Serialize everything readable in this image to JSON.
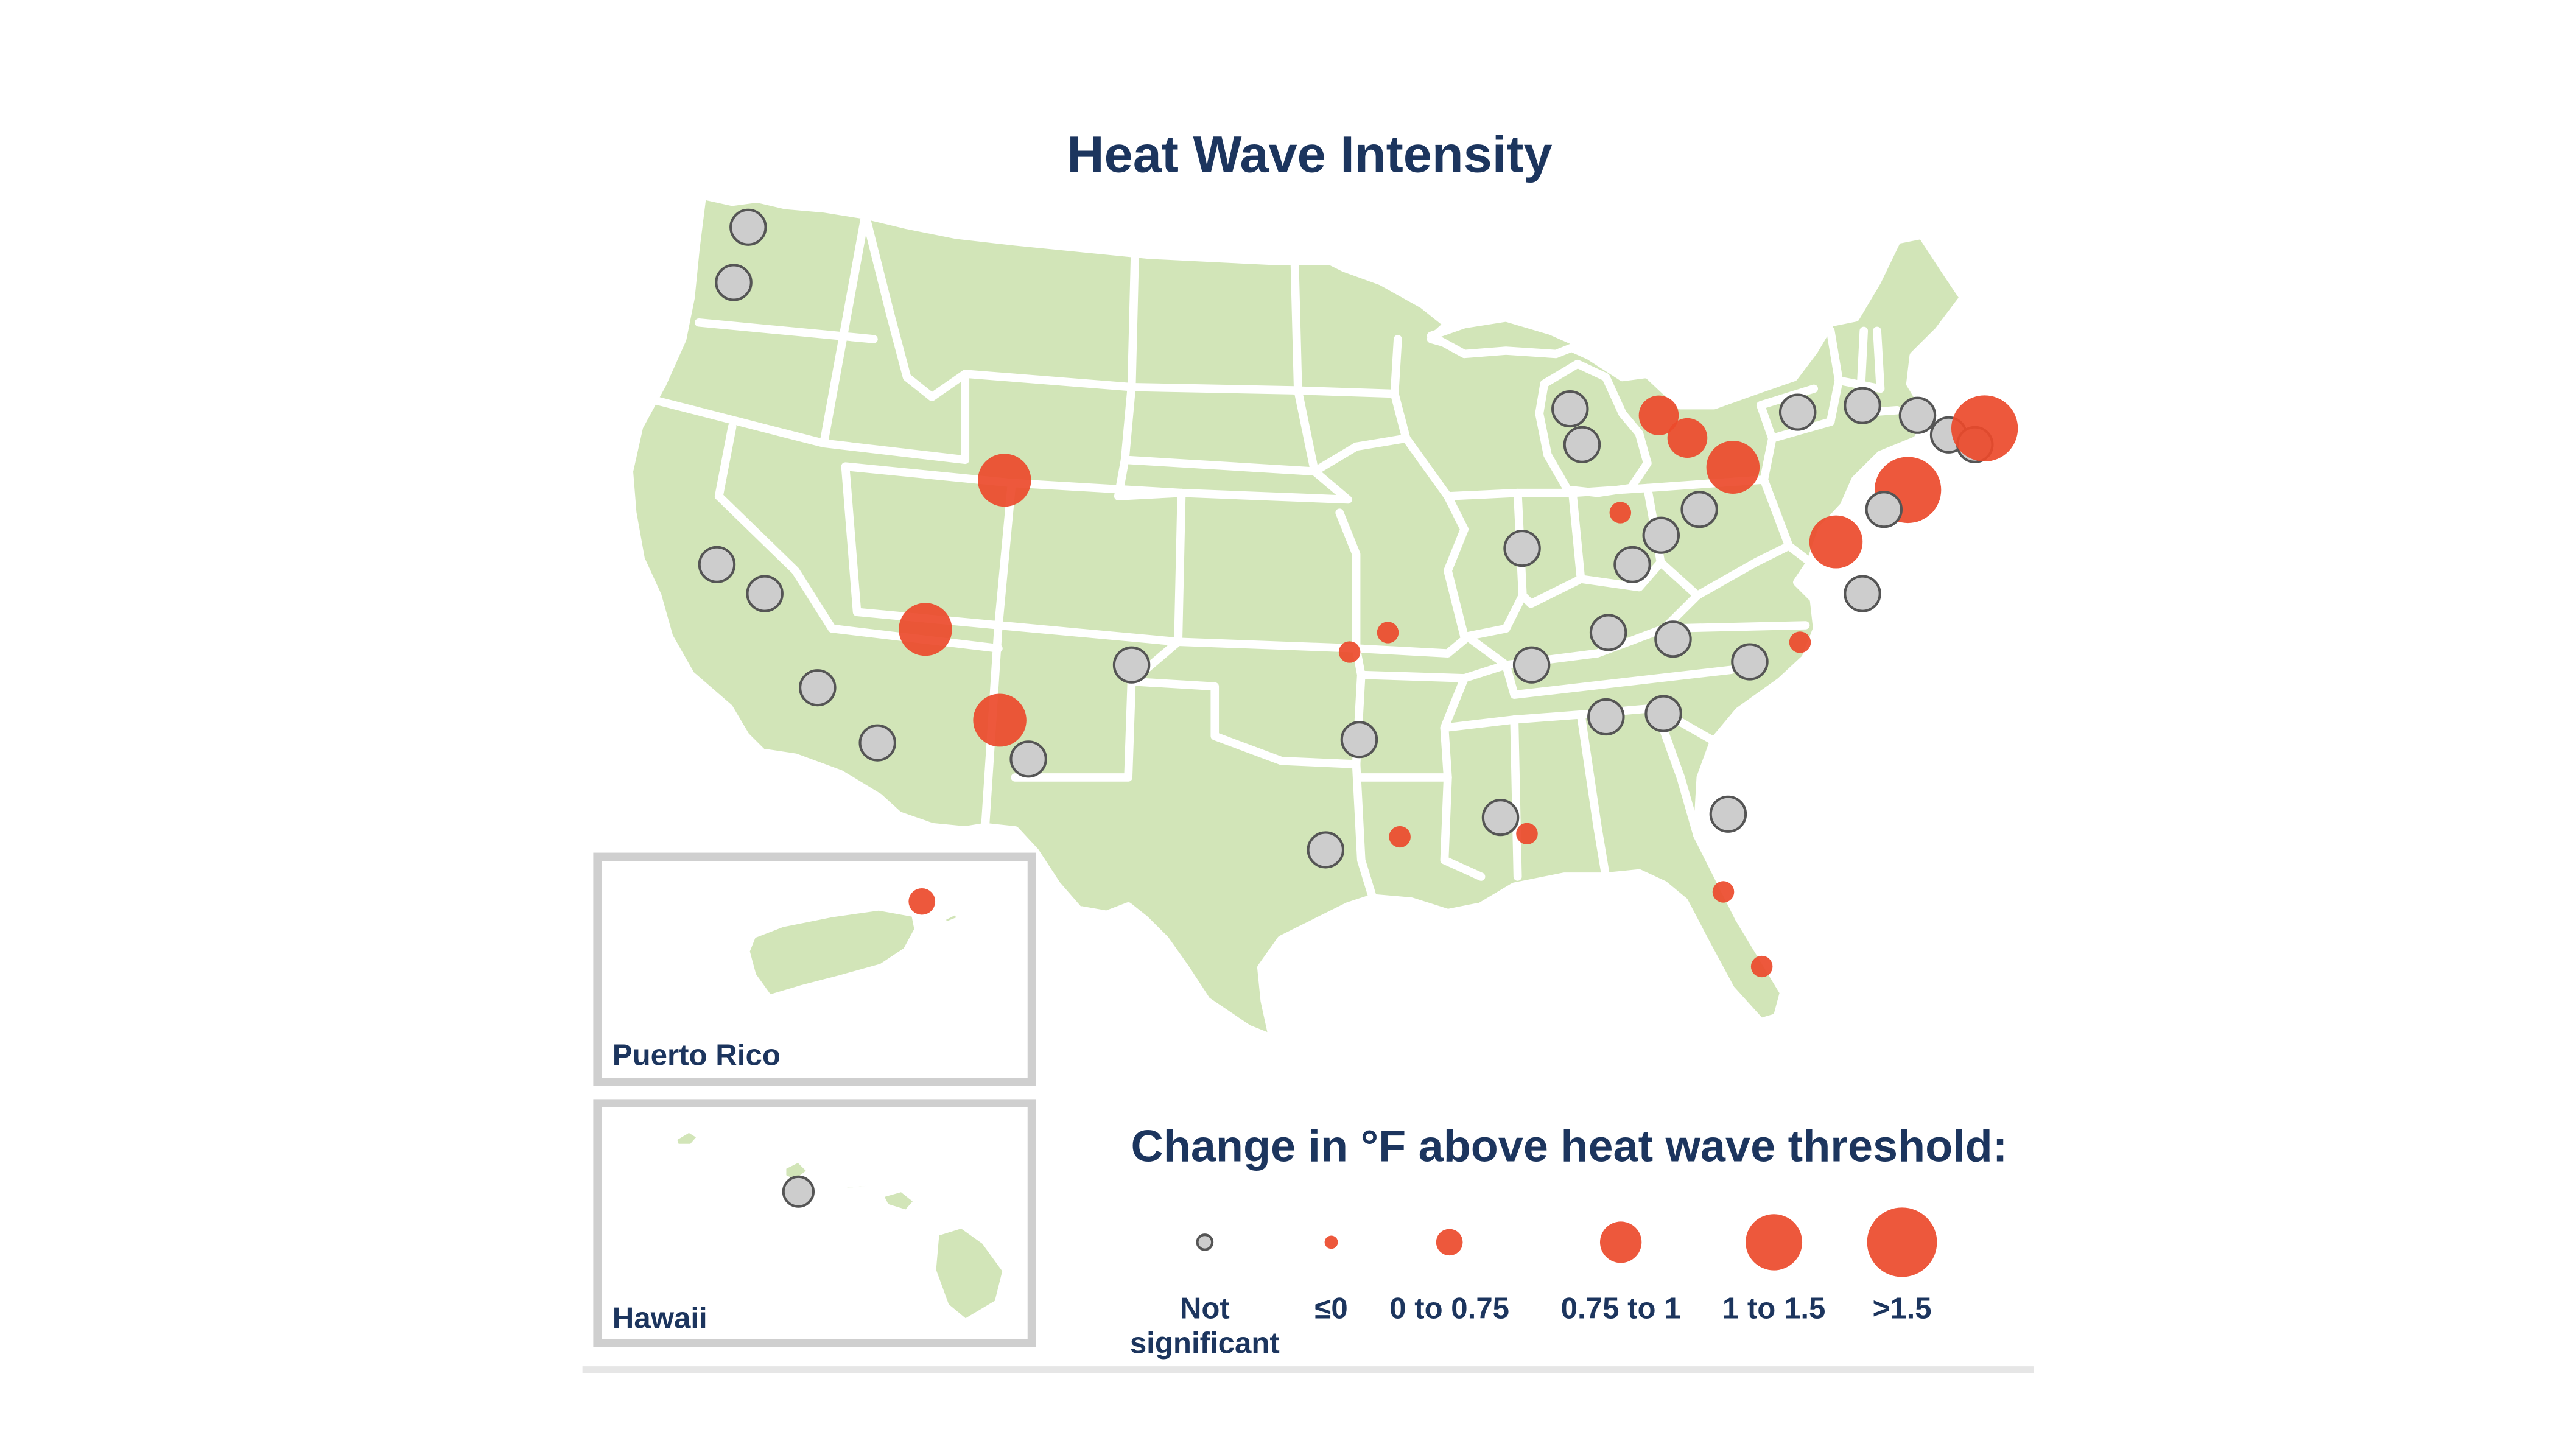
{
  "title": "Heat Wave Intensity",
  "colors": {
    "land": "#d2e5b8",
    "significant_fill": "#ec4a2b",
    "not_significant_fill": "#cdcdcd",
    "not_significant_stroke": "#555555",
    "text": "#1c355e"
  },
  "insets": {
    "puerto_rico": "Puerto Rico",
    "hawaii": "Hawaii"
  },
  "legend": {
    "title": "Change in °F above heat wave threshold:",
    "categories": [
      {
        "key": "ns",
        "label_lines": [
          "Not",
          "significant"
        ]
      },
      {
        "key": "le0",
        "label_lines": [
          "≤0"
        ]
      },
      {
        "key": "c1",
        "label_lines": [
          "0 to 0.75"
        ]
      },
      {
        "key": "c2",
        "label_lines": [
          "0.75 to 1"
        ]
      },
      {
        "key": "c3",
        "label_lines": [
          "1 to 1.5"
        ]
      },
      {
        "key": "c4",
        "label_lines": [
          ">1.5"
        ]
      }
    ]
  },
  "map_data": {
    "stations": [
      {
        "lat": 48.6,
        "lon": -122.6,
        "cat": "ns"
      },
      {
        "lat": 46.9,
        "lon": -123.2,
        "cat": "ns"
      },
      {
        "lat": 40.8,
        "lon": -111.9,
        "cat": "c3"
      },
      {
        "lat": 38.2,
        "lon": -123.9,
        "cat": "ns"
      },
      {
        "lat": 37.3,
        "lon": -121.9,
        "cat": "ns"
      },
      {
        "lat": 36.2,
        "lon": -115.2,
        "cat": "c3"
      },
      {
        "lat": 34.4,
        "lon": -119.7,
        "cat": "ns"
      },
      {
        "lat": 32.7,
        "lon": -117.2,
        "cat": "ns"
      },
      {
        "lat": 33.4,
        "lon": -112.1,
        "cat": "c3"
      },
      {
        "lat": 32.2,
        "lon": -110.9,
        "cat": "ns"
      },
      {
        "lat": 35.1,
        "lon": -106.6,
        "cat": "ns"
      },
      {
        "lat": 35.5,
        "lon": -97.5,
        "cat": "le0"
      },
      {
        "lat": 36.1,
        "lon": -95.9,
        "cat": "le0"
      },
      {
        "lat": 32.8,
        "lon": -97.1,
        "cat": "ns"
      },
      {
        "lat": 29.8,
        "lon": -95.4,
        "cat": "le0"
      },
      {
        "lat": 29.4,
        "lon": -98.5,
        "cat": "ns"
      },
      {
        "lat": 43.0,
        "lon": -88.3,
        "cat": "ns"
      },
      {
        "lat": 41.9,
        "lon": -87.8,
        "cat": "ns"
      },
      {
        "lat": 38.7,
        "lon": -90.3,
        "cat": "ns"
      },
      {
        "lat": 35.1,
        "lon": -89.9,
        "cat": "ns"
      },
      {
        "lat": 30.4,
        "lon": -91.2,
        "cat": "ns"
      },
      {
        "lat": 29.9,
        "lon": -90.1,
        "cat": "le0"
      },
      {
        "lat": 42.8,
        "lon": -84.6,
        "cat": "c2"
      },
      {
        "lat": 42.1,
        "lon": -83.4,
        "cat": "c2"
      },
      {
        "lat": 41.2,
        "lon": -81.5,
        "cat": "c3"
      },
      {
        "lat": 39.9,
        "lon": -82.9,
        "cat": "ns"
      },
      {
        "lat": 39.8,
        "lon": -86.2,
        "cat": "le0"
      },
      {
        "lat": 39.1,
        "lon": -84.5,
        "cat": "ns"
      },
      {
        "lat": 38.2,
        "lon": -85.7,
        "cat": "ns"
      },
      {
        "lat": 36.1,
        "lon": -86.7,
        "cat": "ns"
      },
      {
        "lat": 35.9,
        "lon": -84.0,
        "cat": "ns"
      },
      {
        "lat": 35.2,
        "lon": -80.8,
        "cat": "ns"
      },
      {
        "lat": 35.8,
        "lon": -78.7,
        "cat": "le0"
      },
      {
        "lat": 33.5,
        "lon": -86.8,
        "cat": "ns"
      },
      {
        "lat": 33.6,
        "lon": -84.4,
        "cat": "ns"
      },
      {
        "lat": 30.5,
        "lon": -81.7,
        "cat": "ns"
      },
      {
        "lat": 28.1,
        "lon": -81.9,
        "cat": "le0"
      },
      {
        "lat": 25.8,
        "lon": -80.3,
        "cat": "le0"
      },
      {
        "lat": 42.9,
        "lon": -78.8,
        "cat": "ns"
      },
      {
        "lat": 43.1,
        "lon": -76.1,
        "cat": "ns"
      },
      {
        "lat": 42.8,
        "lon": -73.8,
        "cat": "ns"
      },
      {
        "lat": 42.2,
        "lon": -72.5,
        "cat": "ns"
      },
      {
        "lat": 41.9,
        "lon": -71.4,
        "cat": "ns"
      },
      {
        "lat": 42.4,
        "lon": -71.0,
        "cat": "c4"
      },
      {
        "lat": 40.5,
        "lon": -74.2,
        "cat": "c4"
      },
      {
        "lat": 39.9,
        "lon": -75.2,
        "cat": "ns"
      },
      {
        "lat": 38.9,
        "lon": -77.2,
        "cat": "c3"
      },
      {
        "lat": 37.3,
        "lon": -76.1,
        "cat": "ns"
      }
    ],
    "puerto_rico_stations": [
      {
        "lat": 18.45,
        "lon": -66.0,
        "cat": "le0"
      }
    ],
    "hawaii_stations": [
      {
        "lat": 21.3,
        "lon": -157.9,
        "cat": "ns"
      }
    ]
  }
}
